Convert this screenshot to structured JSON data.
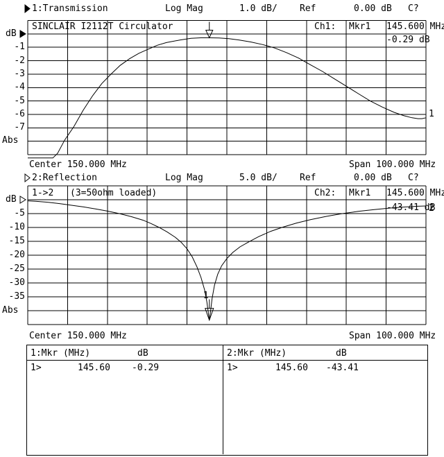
{
  "display": {
    "bg": "#ffffff",
    "fg": "#000000"
  },
  "chart_data": [
    {
      "type": "line",
      "channel": "1:Transmission",
      "channel_active": true,
      "format": "Log Mag",
      "scale_label": "1.0 dB/",
      "ref_label": "Ref",
      "ref_value": "0.00 dB",
      "cal_status": "C?",
      "title": "SINCLAIR I2112T Circulator",
      "readout": {
        "ch": "Ch1:",
        "mkr": "Mkr1",
        "freq": "145.600 MHz",
        "value": "-0.29 dB"
      },
      "ylabel": "dB",
      "abs_label": "Abs",
      "y_ticks": [
        "-1",
        "-2",
        "-3",
        "-4",
        "-5",
        "-6",
        "-7"
      ],
      "y_top_db": 1,
      "y_bottom_db": -9,
      "db_per_div": 1.0,
      "x_center_mhz": 150,
      "x_span_mhz": 100,
      "center_label": "Center 150.000 MHz",
      "span_label": "Span 100.000 MHz",
      "trace_number": "1",
      "grid": "10x10 on",
      "marker": {
        "number": "1",
        "freq_mhz": 145.6,
        "value_db": -0.29
      },
      "series": [
        {
          "name": "Transmission",
          "points_mhz_db": [
            [
              100,
              -9.25
            ],
            [
              106.3,
              -9.25
            ],
            [
              107.5,
              -8.9
            ],
            [
              109.3,
              -7.9
            ],
            [
              111.6,
              -6.9
            ],
            [
              113.9,
              -5.7
            ],
            [
              116.3,
              -4.6
            ],
            [
              118.6,
              -3.7
            ],
            [
              120.9,
              -3.0
            ],
            [
              123.2,
              -2.35
            ],
            [
              125.6,
              -1.85
            ],
            [
              127.9,
              -1.45
            ],
            [
              130.2,
              -1.15
            ],
            [
              132.5,
              -0.85
            ],
            [
              134.8,
              -0.65
            ],
            [
              138.3,
              -0.45
            ],
            [
              141,
              -0.33
            ],
            [
              143.5,
              -0.29
            ],
            [
              145.6,
              -0.29
            ],
            [
              148,
              -0.31
            ],
            [
              150.5,
              -0.36
            ],
            [
              153,
              -0.45
            ],
            [
              156,
              -0.6
            ],
            [
              159,
              -0.8
            ],
            [
              162,
              -1.05
            ],
            [
              165,
              -1.4
            ],
            [
              168,
              -1.8
            ],
            [
              171,
              -2.3
            ],
            [
              174,
              -2.8
            ],
            [
              177,
              -3.35
            ],
            [
              180,
              -3.9
            ],
            [
              183,
              -4.45
            ],
            [
              186,
              -5.0
            ],
            [
              189,
              -5.45
            ],
            [
              192,
              -5.85
            ],
            [
              194.5,
              -6.1
            ],
            [
              196.5,
              -6.25
            ],
            [
              198,
              -6.32
            ],
            [
              199,
              -6.32
            ],
            [
              200,
              -6.25
            ]
          ]
        }
      ]
    },
    {
      "type": "line",
      "channel": "2:Reflection",
      "channel_active": false,
      "format": "Log Mag",
      "scale_label": "5.0 dB/",
      "ref_label": "Ref",
      "ref_value": "0.00 dB",
      "cal_status": "C?",
      "port_path": "1->2",
      "title": "(3=50ohm loaded)",
      "readout": {
        "ch": "Ch2:",
        "mkr": "Mkr1",
        "freq": "145.600 MHz",
        "value": "-43.41 dB"
      },
      "ylabel": "dB",
      "abs_label": "Abs",
      "y_ticks": [
        "-5",
        "-10",
        "-15",
        "-20",
        "-25",
        "-30",
        "-35"
      ],
      "y_top_db": 5,
      "y_bottom_db": -45,
      "db_per_div": 5.0,
      "x_center_mhz": 150,
      "x_span_mhz": 100,
      "center_label": "Center 150.000 MHz",
      "span_label": "Span 100.000 MHz",
      "trace_number": "2",
      "grid": "10x10 on",
      "marker": {
        "number": "1",
        "freq_mhz": 145.6,
        "value_db": -43.41
      },
      "series": [
        {
          "name": "Reflection",
          "points_mhz_db": [
            [
              100,
              -0.4
            ],
            [
              102,
              -0.55
            ],
            [
              105,
              -0.9
            ],
            [
              108,
              -1.4
            ],
            [
              111,
              -2.0
            ],
            [
              114,
              -2.6
            ],
            [
              117,
              -3.3
            ],
            [
              120,
              -4.1
            ],
            [
              123,
              -5.0
            ],
            [
              126,
              -6.1
            ],
            [
              129,
              -7.4
            ],
            [
              131,
              -8.6
            ],
            [
              133,
              -10.0
            ],
            [
              135,
              -11.6
            ],
            [
              137,
              -13.5
            ],
            [
              138.5,
              -15.3
            ],
            [
              140,
              -17.7
            ],
            [
              141.3,
              -20.6
            ],
            [
              142.5,
              -24.2
            ],
            [
              143.5,
              -28.0
            ],
            [
              144.4,
              -32.5
            ],
            [
              145.0,
              -37.0
            ],
            [
              145.35,
              -40.8
            ],
            [
              145.6,
              -43.41
            ],
            [
              145.9,
              -40.2
            ],
            [
              146.3,
              -35.5
            ],
            [
              146.9,
              -30.8
            ],
            [
              147.7,
              -26.9
            ],
            [
              148.7,
              -23.8
            ],
            [
              150,
              -21.2
            ],
            [
              151.5,
              -19.0
            ],
            [
              153.3,
              -17.0
            ],
            [
              155.5,
              -15.2
            ],
            [
              158,
              -13.3
            ],
            [
              161,
              -11.4
            ],
            [
              164,
              -9.9
            ],
            [
              167.5,
              -8.4
            ],
            [
              171,
              -7.2
            ],
            [
              175,
              -6.0
            ],
            [
              179,
              -5.0
            ],
            [
              183,
              -4.2
            ],
            [
              187,
              -3.55
            ],
            [
              191,
              -3.0
            ],
            [
              195,
              -2.6
            ],
            [
              198,
              -2.35
            ],
            [
              200,
              -2.25
            ]
          ]
        }
      ]
    }
  ],
  "marker_table": {
    "panes": [
      {
        "title": "1:Mkr (MHz)",
        "unit": "dB",
        "row": {
          "sel": "1>",
          "freq": "145.60",
          "value": "-0.29"
        }
      },
      {
        "title": "2:Mkr (MHz)",
        "unit": "dB",
        "row": {
          "sel": "1>",
          "freq": "145.60",
          "value": "-43.41"
        }
      }
    ]
  }
}
